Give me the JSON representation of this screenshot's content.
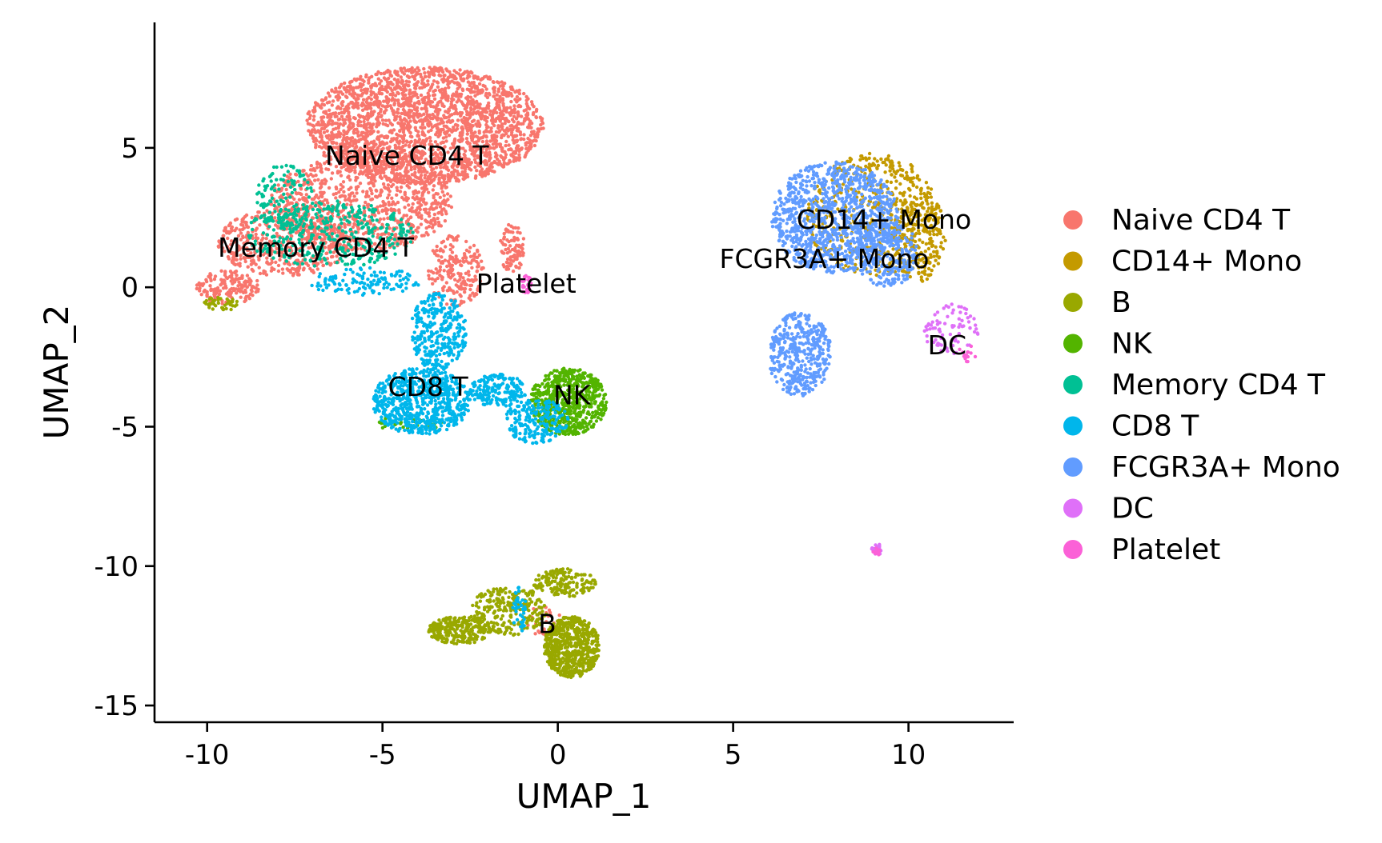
{
  "chart_data": {
    "type": "scatter",
    "title": "",
    "xlabel": "UMAP_1",
    "ylabel": "UMAP_2",
    "xlim": [
      -11.5,
      13
    ],
    "ylim": [
      -15.6,
      9.5
    ],
    "xticks": [
      -10,
      -5,
      0,
      5,
      10
    ],
    "xtick_labels": [
      "-10",
      "-5",
      "0",
      "5",
      "10"
    ],
    "yticks": [
      -15,
      -10,
      -5,
      0,
      5
    ],
    "ytick_labels": [
      "-15",
      "-10",
      "-5",
      "0",
      "5"
    ],
    "grid": false,
    "legend_position": "right",
    "series": [
      {
        "name": "Naive CD4 T",
        "color": "#F8766D",
        "label": "Naive CD4 T",
        "label_pos": [
          -4.3,
          4.4
        ],
        "blobs": [
          {
            "cx": -3.8,
            "cy": 5.8,
            "rx": 3.4,
            "ry": 2.1,
            "n": 2400
          },
          {
            "cx": -5.6,
            "cy": 3.0,
            "rx": 2.6,
            "ry": 1.7,
            "n": 900
          },
          {
            "cx": -7.8,
            "cy": 1.6,
            "rx": 1.9,
            "ry": 1.2,
            "n": 500
          },
          {
            "cx": -9.4,
            "cy": 0.0,
            "rx": 0.9,
            "ry": 0.6,
            "n": 160
          },
          {
            "cx": -2.9,
            "cy": 0.6,
            "rx": 0.8,
            "ry": 1.3,
            "n": 200
          },
          {
            "cx": -1.3,
            "cy": 1.4,
            "rx": 0.35,
            "ry": 0.9,
            "n": 90
          },
          {
            "cx": -0.4,
            "cy": -12.0,
            "rx": 0.5,
            "ry": 0.6,
            "n": 30
          }
        ]
      },
      {
        "name": "CD14+ Mono",
        "color": "#C49A00",
        "label": "CD14+ Mono",
        "label_pos": [
          9.3,
          2.1
        ],
        "blobs": [
          {
            "cx": 9.0,
            "cy": 2.6,
            "rx": 1.9,
            "ry": 2.2,
            "n": 500
          },
          {
            "cx": 10.3,
            "cy": 1.8,
            "rx": 0.8,
            "ry": 1.6,
            "n": 220
          }
        ]
      },
      {
        "name": "B",
        "color": "#99A800",
        "label": "B",
        "label_pos": [
          -0.3,
          -12.4
        ],
        "blobs": [
          {
            "cx": 0.4,
            "cy": -12.9,
            "rx": 0.8,
            "ry": 1.1,
            "n": 650
          },
          {
            "cx": -2.8,
            "cy": -12.3,
            "rx": 0.9,
            "ry": 0.5,
            "n": 260
          },
          {
            "cx": -1.4,
            "cy": -11.6,
            "rx": 1.1,
            "ry": 0.9,
            "n": 260
          },
          {
            "cx": 0.2,
            "cy": -10.6,
            "rx": 0.9,
            "ry": 0.5,
            "n": 160
          },
          {
            "cx": -9.6,
            "cy": -0.6,
            "rx": 0.5,
            "ry": 0.25,
            "n": 40
          }
        ]
      },
      {
        "name": "NK",
        "color": "#53B400",
        "label": "NK",
        "label_pos": [
          0.4,
          -4.2
        ],
        "blobs": [
          {
            "cx": 0.3,
            "cy": -4.1,
            "rx": 1.1,
            "ry": 1.2,
            "n": 650
          },
          {
            "cx": -4.2,
            "cy": -4.9,
            "rx": 1.0,
            "ry": 0.3,
            "n": 40
          }
        ]
      },
      {
        "name": "Memory CD4 T",
        "color": "#00C094",
        "label": "Memory CD4 T",
        "label_pos": [
          -6.9,
          1.1
        ],
        "blobs": [
          {
            "cx": -6.5,
            "cy": 1.9,
            "rx": 2.4,
            "ry": 1.2,
            "n": 380
          },
          {
            "cx": -7.8,
            "cy": 3.2,
            "rx": 0.8,
            "ry": 1.2,
            "n": 130
          }
        ]
      },
      {
        "name": "CD8 T",
        "color": "#00B6EB",
        "label": "CD8 T",
        "label_pos": [
          -3.7,
          -3.9
        ],
        "blobs": [
          {
            "cx": -3.9,
            "cy": -4.1,
            "rx": 1.4,
            "ry": 1.2,
            "n": 700
          },
          {
            "cx": -3.4,
            "cy": -1.6,
            "rx": 0.8,
            "ry": 1.4,
            "n": 320
          },
          {
            "cx": -1.7,
            "cy": -3.7,
            "rx": 0.8,
            "ry": 0.6,
            "n": 180
          },
          {
            "cx": -0.6,
            "cy": -4.8,
            "rx": 0.9,
            "ry": 0.8,
            "n": 200
          },
          {
            "cx": -5.5,
            "cy": 0.2,
            "rx": 1.6,
            "ry": 0.5,
            "n": 120
          },
          {
            "cx": -1.1,
            "cy": -11.6,
            "rx": 0.2,
            "ry": 0.9,
            "n": 40
          }
        ]
      },
      {
        "name": "FCGR3A+ Mono",
        "color": "#619CFF",
        "label": "FCGR3A+ Mono",
        "label_pos": [
          7.6,
          0.7
        ],
        "blobs": [
          {
            "cx": 7.9,
            "cy": 2.5,
            "rx": 1.8,
            "ry": 2.0,
            "n": 1000
          },
          {
            "cx": 6.9,
            "cy": -2.4,
            "rx": 0.9,
            "ry": 1.5,
            "n": 420
          },
          {
            "cx": 9.4,
            "cy": 1.2,
            "rx": 0.9,
            "ry": 1.2,
            "n": 250
          }
        ]
      },
      {
        "name": "DC",
        "color": "#DF70F8",
        "label": "DC",
        "label_pos": [
          11.1,
          -2.4
        ],
        "blobs": [
          {
            "cx": 11.2,
            "cy": -1.5,
            "rx": 0.8,
            "ry": 0.9,
            "n": 80
          },
          {
            "cx": 9.1,
            "cy": -9.4,
            "rx": 0.15,
            "ry": 0.2,
            "n": 20
          }
        ]
      },
      {
        "name": "Platelet",
        "color": "#FB61D7",
        "label": "Platelet",
        "label_pos": [
          -0.9,
          -0.2
        ],
        "blobs": [
          {
            "cx": -0.9,
            "cy": 0.1,
            "rx": 0.15,
            "ry": 0.35,
            "n": 30
          },
          {
            "cx": 9.1,
            "cy": -9.5,
            "rx": 0.12,
            "ry": 0.15,
            "n": 10
          },
          {
            "cx": 11.7,
            "cy": -2.4,
            "rx": 0.3,
            "ry": 0.3,
            "n": 15
          }
        ]
      }
    ]
  }
}
